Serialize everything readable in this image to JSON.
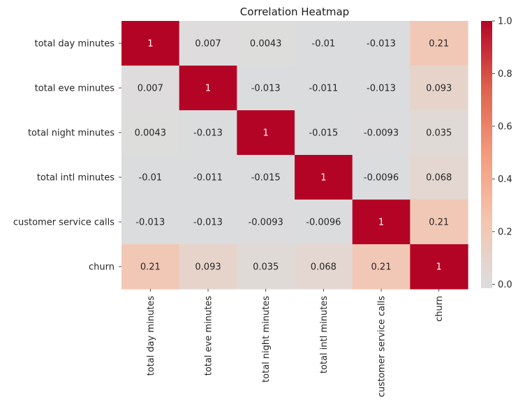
{
  "chart_data": {
    "type": "heatmap",
    "title": "Correlation Heatmap",
    "xlabel": "",
    "ylabel": "",
    "row_labels": [
      "total day minutes",
      "total eve minutes",
      "total night minutes",
      "total intl minutes",
      "customer service calls",
      "churn"
    ],
    "col_labels": [
      "total day minutes",
      "total eve minutes",
      "total night minutes",
      "total intl minutes",
      "customer service calls",
      "churn"
    ],
    "values": [
      [
        1,
        0.007,
        0.0043,
        -0.01,
        -0.013,
        0.21
      ],
      [
        0.007,
        1,
        -0.013,
        -0.011,
        -0.013,
        0.093
      ],
      [
        0.0043,
        -0.013,
        1,
        -0.015,
        -0.0093,
        0.035
      ],
      [
        -0.01,
        -0.011,
        -0.015,
        1,
        -0.0096,
        0.068
      ],
      [
        -0.013,
        -0.013,
        -0.0093,
        -0.0096,
        1,
        0.21
      ],
      [
        0.21,
        0.093,
        0.035,
        0.068,
        0.21,
        1
      ]
    ],
    "annotations": [
      [
        "1",
        "0.007",
        "0.0043",
        "-0.01",
        "-0.013",
        "0.21"
      ],
      [
        "0.007",
        "1",
        "-0.013",
        "-0.011",
        "-0.013",
        "0.093"
      ],
      [
        "0.0043",
        "-0.013",
        "1",
        "-0.015",
        "-0.0093",
        "0.035"
      ],
      [
        "-0.01",
        "-0.011",
        "-0.015",
        "1",
        "-0.0096",
        "0.068"
      ],
      [
        "-0.013",
        "-0.013",
        "-0.0093",
        "-0.0096",
        "1",
        "0.21"
      ],
      [
        "0.21",
        "0.093",
        "0.035",
        "0.068",
        "0.21",
        "1"
      ]
    ],
    "colormap": "coolwarm",
    "vmin": -0.015,
    "vmax": 1,
    "colorbar": {
      "ticks": [
        0,
        0.2,
        0.4,
        0.6,
        0.8,
        1
      ],
      "tick_labels": [
        "0.0",
        "0.2",
        "0.4",
        "0.6",
        "0.8",
        "1.0"
      ]
    }
  }
}
